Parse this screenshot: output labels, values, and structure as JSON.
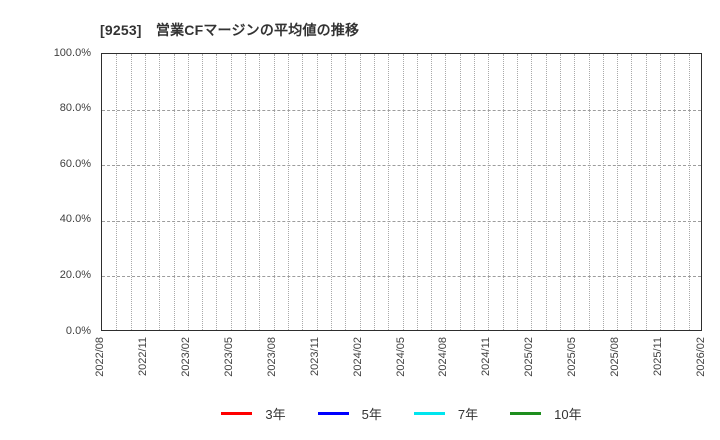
{
  "page": {
    "background": "#ffffff"
  },
  "chart": {
    "title": "[9253]　営業CFマージンの平均値の推移",
    "title_color": "#333333",
    "axis_color": "#2e2e2e",
    "grid_color": "#a9a9a9",
    "tick_label_color": "#404040"
  },
  "chart_data": {
    "type": "line",
    "title": "[9253]　営業CFマージンの平均値の推移",
    "xlabel": "",
    "ylabel": "",
    "ylim": [
      0,
      100
    ],
    "y_tick_step_percent": 20,
    "y_tick_labels": [
      "0.0%",
      "20.0%",
      "40.0%",
      "60.0%",
      "80.0%",
      "100.0%"
    ],
    "x_tick_labels": [
      "2022/08",
      "2022/11",
      "2023/02",
      "2023/05",
      "2023/08",
      "2023/11",
      "2024/02",
      "2024/05",
      "2024/08",
      "2024/11",
      "2025/02",
      "2025/05",
      "2025/08",
      "2025/11",
      "2026/02"
    ],
    "minor_x_divisions": 42,
    "grid": true,
    "legend_position": "bottom",
    "series": [
      {
        "name": "3年",
        "color": "#ff0000",
        "values": []
      },
      {
        "name": "5年",
        "color": "#0000ff",
        "values": []
      },
      {
        "name": "7年",
        "color": "#00e5ee",
        "values": []
      },
      {
        "name": "10年",
        "color": "#1e8e1e",
        "values": []
      }
    ]
  }
}
